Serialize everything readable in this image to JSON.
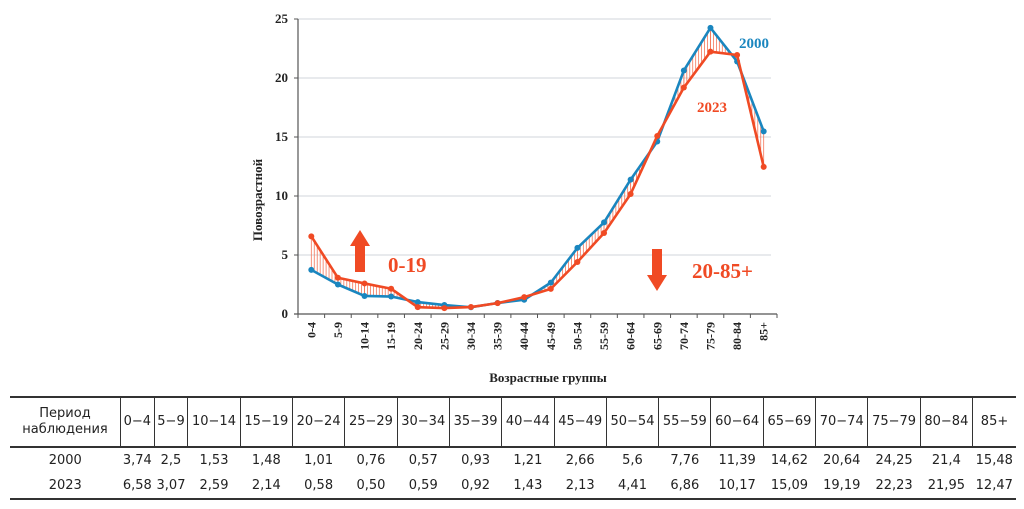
{
  "chart_data": {
    "type": "line",
    "title": "",
    "xlabel": "Возрастные группы",
    "ylabel": "Повозрастной",
    "ylim": [
      0,
      25
    ],
    "yticks": [
      0,
      5,
      10,
      15,
      20,
      25
    ],
    "grid": true,
    "categories": [
      "0-4",
      "5-9",
      "10-14",
      "15-19",
      "20-24",
      "25-29",
      "30-34",
      "35-39",
      "40-44",
      "45-49",
      "50-54",
      "55-59",
      "60-64",
      "65-69",
      "70-74",
      "75-79",
      "80-84",
      "85+"
    ],
    "series": [
      {
        "name": "2000",
        "color": "#1a86bf",
        "values": [
          3.74,
          2.5,
          1.53,
          1.48,
          1.01,
          0.76,
          0.57,
          0.93,
          1.21,
          2.66,
          5.6,
          7.76,
          11.39,
          14.62,
          20.64,
          24.25,
          21.4,
          15.48
        ]
      },
      {
        "name": "2023",
        "color": "#f04a24",
        "values": [
          6.58,
          3.07,
          2.59,
          2.14,
          0.58,
          0.5,
          0.59,
          0.92,
          1.43,
          2.13,
          4.41,
          6.86,
          10.17,
          15.09,
          19.19,
          22.23,
          21.95,
          12.47
        ]
      }
    ],
    "annotations": [
      {
        "text": "0-19",
        "arrow": "up"
      },
      {
        "text": "20-85+",
        "arrow": "down"
      }
    ],
    "shading": "vertical hatching between series"
  },
  "table": {
    "header_first": [
      "Период",
      "наблюдения"
    ],
    "columns": [
      "0−4",
      "5−9",
      "10−14",
      "15−19",
      "20−24",
      "25−29",
      "30−34",
      "35−39",
      "40−44",
      "45−49",
      "50−54",
      "55−59",
      "60−64",
      "65−69",
      "70−74",
      "75−79",
      "80−84",
      "85+"
    ],
    "rows": [
      {
        "label": "2000",
        "values": [
          "3,74",
          "2,5",
          "1,53",
          "1,48",
          "1,01",
          "0,76",
          "0,57",
          "0,93",
          "1,21",
          "2,66",
          "5,6",
          "7,76",
          "11,39",
          "14,62",
          "20,64",
          "24,25",
          "21,4",
          "15,48"
        ]
      },
      {
        "label": "2023",
        "values": [
          "6,58",
          "3,07",
          "2,59",
          "2,14",
          "0,58",
          "0,50",
          "0,59",
          "0,92",
          "1,43",
          "2,13",
          "4,41",
          "6,86",
          "10,17",
          "15,09",
          "19,19",
          "22,23",
          "21,95",
          "12,47"
        ]
      }
    ]
  }
}
